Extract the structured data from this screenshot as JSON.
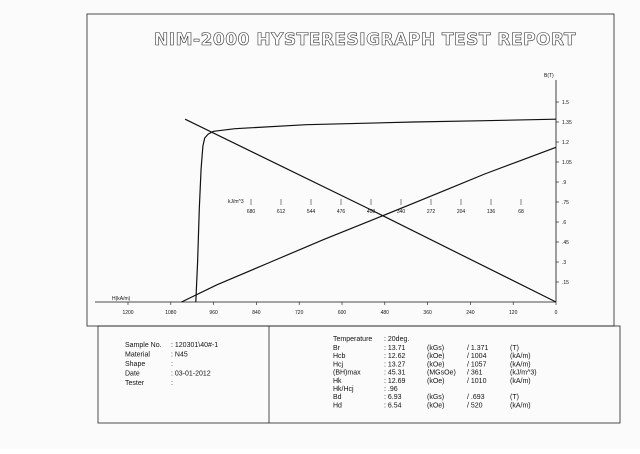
{
  "report": {
    "title": "NIM-2000 HYSTERESIGRAPH TEST REPORT"
  },
  "chart_data": {
    "type": "line",
    "xlabel": "H(kA/m)",
    "ylabel": "B(T)",
    "xlim": [
      1200,
      0
    ],
    "ylim": [
      0,
      1.5
    ],
    "x_ticks": [
      1200,
      1080,
      960,
      840,
      720,
      600,
      480,
      360,
      240,
      120,
      0
    ],
    "y_ticks": [
      ".15",
      ".3",
      ".45",
      ".6",
      ".75",
      ".9",
      "1.05",
      "1.2",
      "1.35",
      "1.5"
    ],
    "energy_label": "kJ/m^3",
    "energy_ticks": [
      "680",
      "612",
      "544",
      "476",
      "408",
      "340",
      "272",
      "204",
      "136",
      "68"
    ],
    "series": [
      {
        "x": [
          1010,
          1005,
          1000,
          995,
          990,
          985,
          975,
          960,
          900,
          700,
          400,
          200,
          0
        ],
        "y": [
          0,
          0.3,
          0.7,
          1.0,
          1.17,
          1.23,
          1.26,
          1.28,
          1.3,
          1.33,
          1.35,
          1.36,
          1.371
        ]
      },
      {
        "x": [
          1050,
          950,
          800,
          650,
          520,
          400,
          300,
          200,
          100,
          0
        ],
        "y": [
          0,
          0.13,
          0.3,
          0.47,
          0.61,
          0.74,
          0.85,
          0.96,
          1.06,
          1.16
        ]
      },
      {
        "x": [
          0,
          520,
          1040
        ],
        "y": [
          0,
          0.693,
          1.371
        ]
      }
    ]
  },
  "sample": {
    "labels": [
      "Sample No.",
      "Material",
      "Shape",
      "Date",
      "Tester"
    ],
    "values": [
      ": 120301\\40#-1",
      ": N45",
      ":",
      ": 03-01-2012",
      ":"
    ]
  },
  "results": {
    "temperature_label": "Temperature",
    "temperature_value": ": 20deg.",
    "rows": [
      {
        "name": "Br",
        "value": ": 13.71",
        "unit1": "(kGs)",
        "si": "/ 1.371",
        "unit2": "(T)"
      },
      {
        "name": "Hcb",
        "value": ": 12.62",
        "unit1": "(kOe)",
        "si": "/ 1004",
        "unit2": "(kA/m)"
      },
      {
        "name": "Hcj",
        "value": ": 13.27",
        "unit1": "(kOe)",
        "si": "/ 1057",
        "unit2": "(kA/m)"
      },
      {
        "name": "(BH)max",
        "value": ": 45.31",
        "unit1": "(MGsOe)",
        "si": "/ 361",
        "unit2": "(kJ/m^3)"
      },
      {
        "name": "Hk",
        "value": ": 12.69",
        "unit1": "(kOe)",
        "si": "/ 1010",
        "unit2": "(kA/m)"
      },
      {
        "name": "Hk/Hcj",
        "value": ": .96",
        "unit1": "",
        "si": "",
        "unit2": ""
      },
      {
        "name": "Bd",
        "value": ": 6.93",
        "unit1": "(kGs)",
        "si": "/ .693",
        "unit2": "(T)"
      },
      {
        "name": "Hd",
        "value": ": 6.54",
        "unit1": "(kOe)",
        "si": "/ 520",
        "unit2": "(kA/m)"
      }
    ]
  }
}
